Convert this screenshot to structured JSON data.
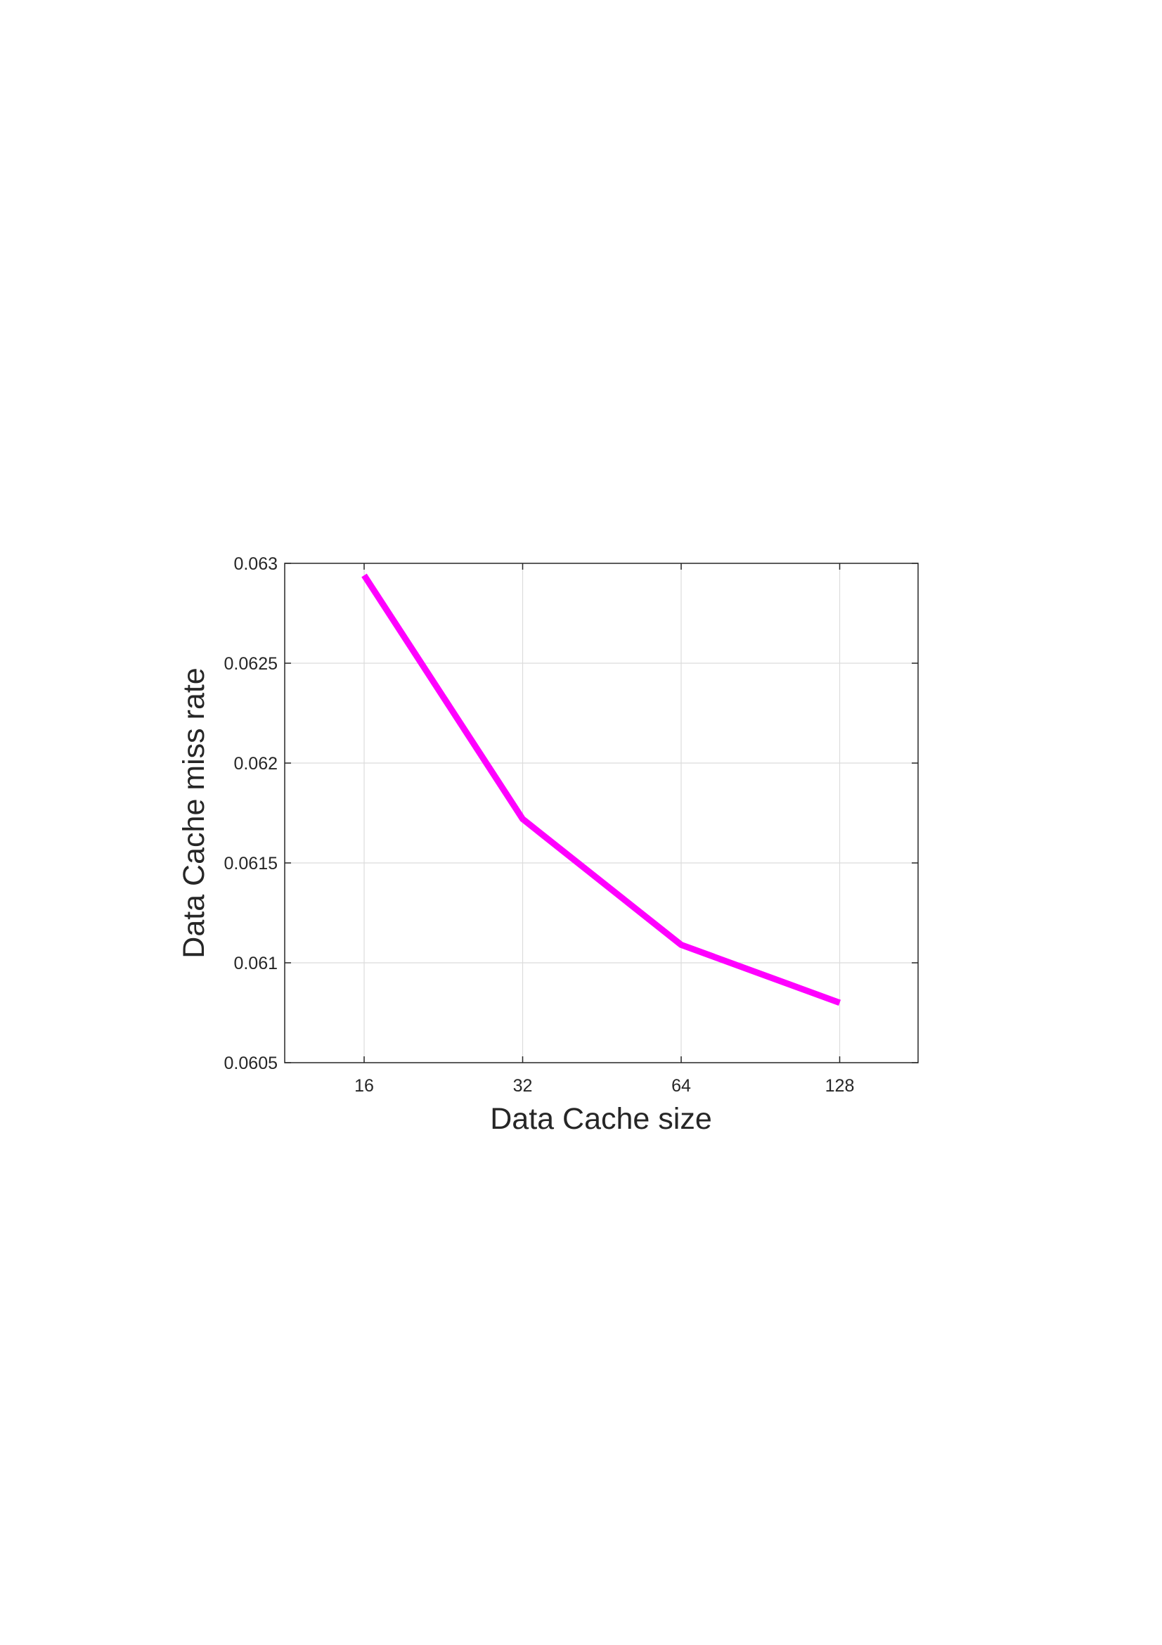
{
  "chart_data": {
    "type": "line",
    "title": "",
    "xlabel": "Data Cache size",
    "ylabel": "Data Cache miss rate",
    "x_categories": [
      "16",
      "32",
      "64",
      "128"
    ],
    "x_scale": "log2",
    "y_ticks": [
      "0.0605",
      "0.061",
      "0.0615",
      "0.062",
      "0.0625",
      "0.063"
    ],
    "ylim": [
      0.0605,
      0.063
    ],
    "grid": true,
    "legend": "none",
    "series": [
      {
        "color": "#ff00ff",
        "x": [
          16,
          32,
          64,
          128
        ],
        "y": [
          0.06294,
          0.06172,
          0.06109,
          0.0608
        ]
      }
    ]
  }
}
